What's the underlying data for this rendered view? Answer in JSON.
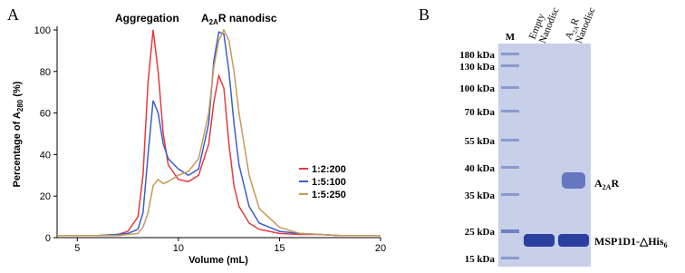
{
  "chart_data": {
    "type": "line",
    "panel_label": "A",
    "xlabel": "Volume (mL)",
    "ylabel": [
      "Percentage of A",
      "280",
      " (%)"
    ],
    "annotations": [
      {
        "text": "Aggregation"
      },
      {
        "text": [
          "A",
          "2A",
          "R nanodisc"
        ]
      }
    ],
    "x": [
      4,
      5,
      6,
      7,
      7.5,
      8,
      8.25,
      8.5,
      8.75,
      9,
      9.25,
      9.5,
      10,
      10.5,
      11,
      11.5,
      11.75,
      12,
      12.25,
      12.5,
      12.75,
      13,
      13.5,
      14,
      15,
      16,
      17,
      18,
      19,
      20
    ],
    "series": [
      {
        "name": "1:2:200",
        "color": "#e8383d",
        "values": [
          1,
          1,
          1,
          1.5,
          3,
          10,
          30,
          75,
          100,
          80,
          50,
          35,
          28,
          27,
          30,
          45,
          65,
          78,
          72,
          45,
          25,
          15,
          7,
          4,
          2,
          1.5,
          1.5,
          1,
          1,
          1
        ]
      },
      {
        "name": "1:5:100",
        "color": "#3b5fc9",
        "values": [
          1,
          1,
          1,
          1.5,
          2,
          4,
          12,
          40,
          66,
          60,
          45,
          38,
          33,
          30,
          33,
          55,
          85,
          99,
          98,
          80,
          55,
          35,
          15,
          7,
          3,
          2,
          1.5,
          1,
          1,
          1
        ]
      },
      {
        "name": "1:5:250",
        "color": "#c49a5a",
        "values": [
          1,
          1,
          1,
          1,
          1.5,
          2,
          5,
          12,
          25,
          28,
          26,
          27,
          30,
          32,
          38,
          60,
          82,
          95,
          100,
          95,
          80,
          60,
          30,
          14,
          5,
          2,
          1.5,
          1,
          1,
          1
        ]
      }
    ],
    "xlim": [
      4,
      20
    ],
    "xticks": [
      5,
      10,
      15,
      20
    ],
    "ylim": [
      0,
      100
    ],
    "yticks": [
      0,
      20,
      40,
      60,
      80,
      100
    ],
    "grid": false,
    "legend": "right"
  },
  "gel": {
    "panel_label": "B",
    "marker_lane": "M",
    "lanes": [
      {
        "line1": "Empty",
        "line2": "Nanodisc"
      },
      {
        "line1": [
          "A",
          "2A",
          "R"
        ],
        "line2": "Nanodisc"
      }
    ],
    "markers": [
      "180 kDa",
      "130 kDa",
      "100 kDa",
      "70 kDa",
      "55 kDa",
      "40 kDa",
      "35 kDa",
      "25 kDa",
      "15 kDa"
    ],
    "band_labels": [
      [
        "A",
        "2A",
        "R"
      ],
      [
        "MSP1D1-△His",
        "6"
      ]
    ]
  }
}
